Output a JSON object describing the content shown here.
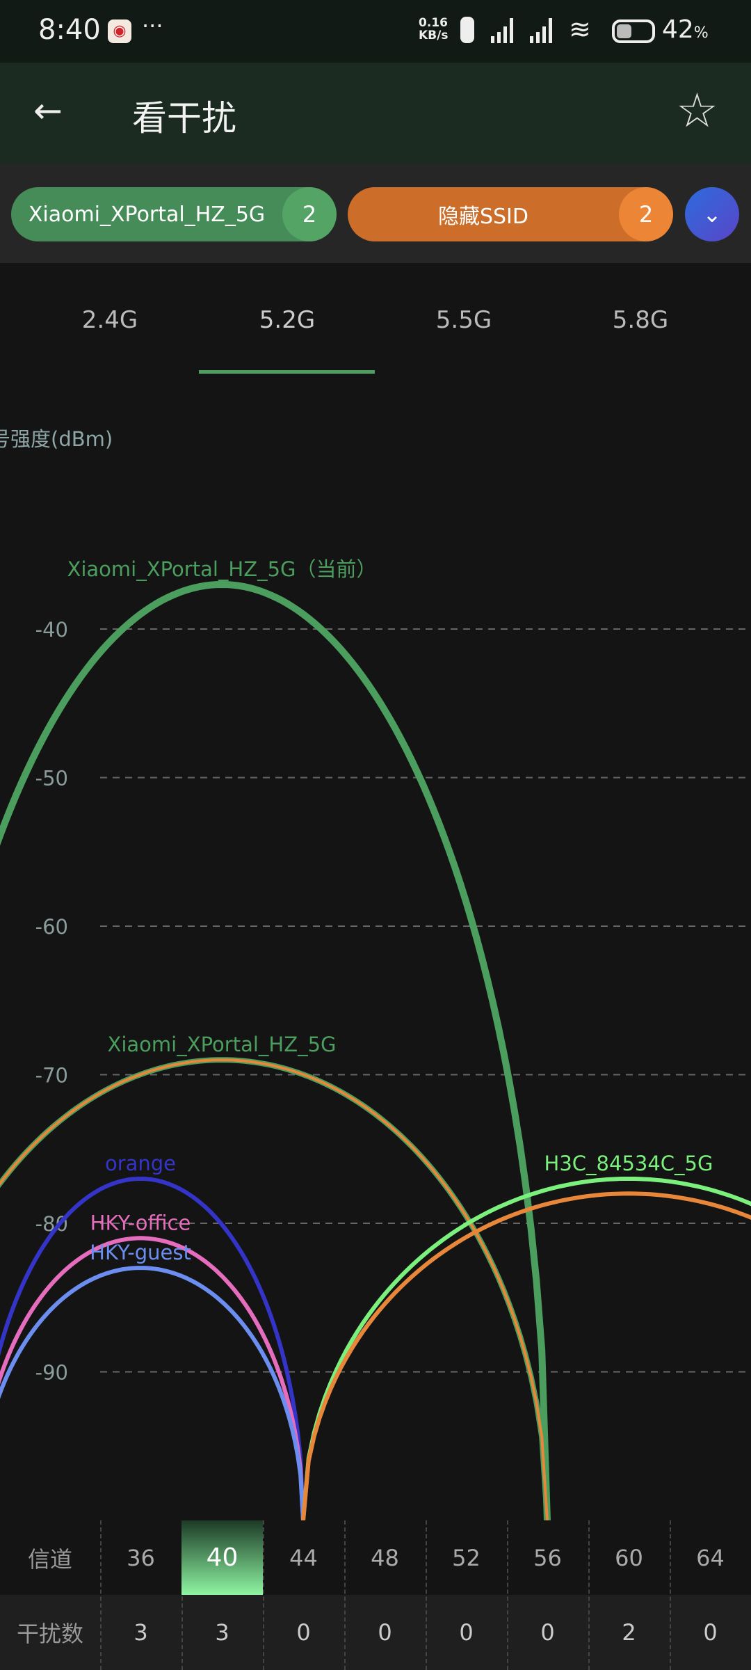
{
  "status_bar": {
    "time": "8:40",
    "net_speed_value": "0.16",
    "net_speed_unit": "KB/s",
    "battery": "42",
    "battery_unit": "%",
    "notification_more": "···"
  },
  "app_bar": {
    "title": "看干扰",
    "back_icon": "arrow-left-icon",
    "favorite_icon": "star-outline-icon"
  },
  "filters": [
    {
      "label": "Xiaomi_XPortal_HZ_5G",
      "count": "2",
      "color": "#458c58"
    },
    {
      "label": "隐藏SSID",
      "count": "2",
      "color": "#cc6d2a"
    }
  ],
  "expand_icon": "chevron-down-icon",
  "tabs": [
    {
      "label": "2.4G",
      "active": false
    },
    {
      "label": "5.2G",
      "active": true
    },
    {
      "label": "5.5G",
      "active": false
    },
    {
      "label": "5.8G",
      "active": false
    }
  ],
  "chart_data": {
    "type": "line",
    "ylabel": "号强度(dBm)",
    "ylim": [
      -100,
      -37
    ],
    "yticks": [
      -40,
      -50,
      -60,
      -70,
      -80,
      -90
    ],
    "grid": true,
    "series": [
      {
        "name": "Xiaomi_XPortal_HZ_5G（当前）",
        "center_channel": 40,
        "half_width_channels": 16,
        "peak_dbm": -37,
        "color": "#4b9e5d",
        "label": true,
        "current": true
      },
      {
        "name": "Xiaomi_XPortal_HZ_5G",
        "center_channel": 40,
        "half_width_channels": 16,
        "peak_dbm": -69,
        "color": "#4b9e5d",
        "label": true
      },
      {
        "name": "",
        "center_channel": 40,
        "half_width_channels": 16,
        "peak_dbm": -69,
        "color": "#e8863a",
        "label": false
      },
      {
        "name": "orange",
        "center_channel": 36,
        "half_width_channels": 8,
        "peak_dbm": -77,
        "color": "#3434c8",
        "label": true
      },
      {
        "name": "HKY-office",
        "center_channel": 36,
        "half_width_channels": 8,
        "peak_dbm": -81,
        "color": "#e66dbd",
        "label": true
      },
      {
        "name": "HKY-guest",
        "center_channel": 36,
        "half_width_channels": 8,
        "peak_dbm": -83,
        "color": "#6b8ef0",
        "label": true
      },
      {
        "name": "H3C_84534C_5G",
        "center_channel": 60,
        "half_width_channels": 16,
        "peak_dbm": -77,
        "color": "#7cf07c",
        "label": true
      },
      {
        "name": "",
        "center_channel": 60,
        "half_width_channels": 16,
        "peak_dbm": -78,
        "color": "#e8863a",
        "label": false
      }
    ]
  },
  "table": {
    "channel_label": "信道",
    "interference_label": "干扰数",
    "channels": [
      "36",
      "40",
      "44",
      "48",
      "52",
      "56",
      "60",
      "64"
    ],
    "interference": [
      "3",
      "3",
      "0",
      "0",
      "0",
      "0",
      "2",
      "0"
    ],
    "selected_channel": "40"
  }
}
